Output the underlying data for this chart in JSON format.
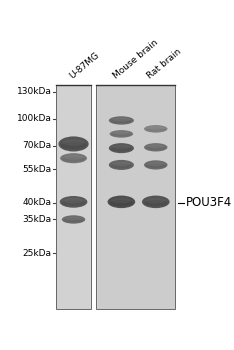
{
  "background_color": "#ffffff",
  "lane_labels": [
    "U-87MG",
    "Mouse brain",
    "Rat brain"
  ],
  "mw_markers": [
    "130kDa",
    "100kDa",
    "70kDa",
    "55kDa",
    "40kDa",
    "35kDa",
    "25kDa"
  ],
  "annotation_label": "POU3F4",
  "panel1_bg": "#d2d2d2",
  "panel2_bg": "#cccccc",
  "gel_outline_color": "#888888",
  "tick_color": "#444444",
  "band_color_dark": "#404040",
  "band_color_mid": "#606060",
  "band_color_light": "#808080",
  "mw_fontsize": 6.5,
  "label_fontsize": 6.5,
  "annot_fontsize": 8.5
}
